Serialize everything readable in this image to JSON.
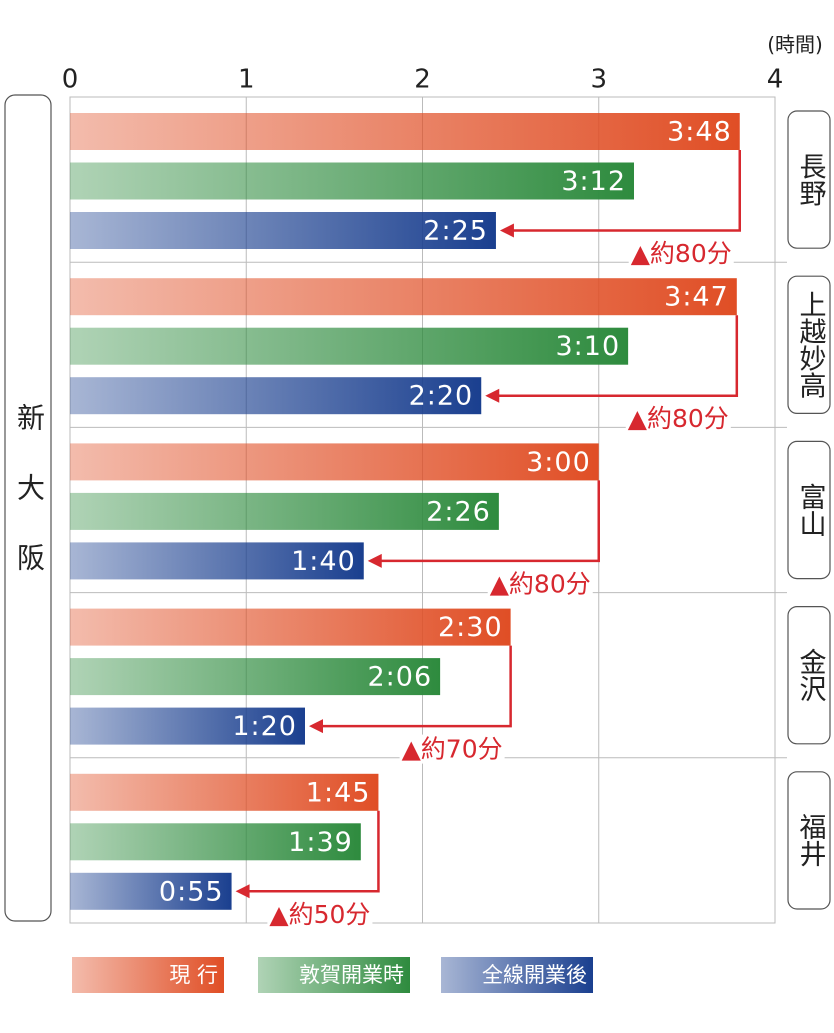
{
  "chart_data": {
    "type": "bar",
    "orientation": "horizontal",
    "origin_label": "新大阪",
    "x_unit": "(時間)",
    "categories": [
      "長野",
      "上越妙高",
      "富山",
      "金沢",
      "福井"
    ],
    "series": [
      {
        "name": "現 行",
        "color": "#e04e25",
        "values": [
          3.8,
          3.7833,
          3,
          2.5,
          1.75
        ],
        "value_labels": [
          "3:48",
          "3:47",
          "3:00",
          "2:30",
          "1:45"
        ]
      },
      {
        "name": "敦賀開業時",
        "color": "#2e8b3e",
        "values": [
          3.2,
          3.1667,
          2.4333,
          2.1,
          1.65
        ],
        "value_labels": [
          "3:12",
          "3:10",
          "2:26",
          "2:06",
          "1:39"
        ]
      },
      {
        "name": "全線開業後",
        "color": "#1a3f8f",
        "values": [
          2.4167,
          2.3333,
          1.6667,
          1.3333,
          0.9167
        ],
        "value_labels": [
          "2:25",
          "2:20",
          "1:40",
          "1:20",
          "0:55"
        ]
      }
    ],
    "annotations": [
      "▲約80分",
      "▲約80分",
      "▲約80分",
      "▲約70分",
      "▲約50分"
    ],
    "annotation_color": "#d7282f",
    "xlim": [
      0,
      4
    ],
    "xticks": [
      0,
      1,
      2,
      3,
      4
    ],
    "grid": true
  }
}
